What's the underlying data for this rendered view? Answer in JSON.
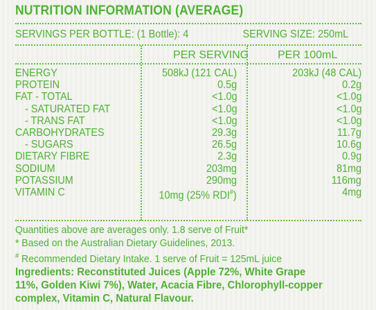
{
  "panel": {
    "title": "NUTRITION INFORMATION (AVERAGE)",
    "servings_per_bottle": "SERVINGS PER BOTTLE: (1 Bottle): 4",
    "serving_size": "SERVING SIZE: 250mL",
    "col_per_serving": "PER SERVING",
    "col_per_100ml": "PER 100mL"
  },
  "nutrients": [
    {
      "name": "ENERGY",
      "per_serving": "508kJ (121 CAL)",
      "per_100ml": "203kJ (48 CAL)"
    },
    {
      "name": "PROTEIN",
      "per_serving": "0.5g",
      "per_100ml": "0.2g"
    },
    {
      "name": "FAT - TOTAL",
      "per_serving": "<1.0g",
      "per_100ml": "<1.0g"
    },
    {
      "name": "- SATURATED FAT",
      "per_serving": "<1.0g",
      "per_100ml": "<1.0g"
    },
    {
      "name": "- TRANS FAT",
      "per_serving": "<1.0g",
      "per_100ml": "<1.0g"
    },
    {
      "name": "CARBOHYDRATES",
      "per_serving": "29.3g",
      "per_100ml": "11.7g"
    },
    {
      "name": "- SUGARS",
      "per_serving": "26.5g",
      "per_100ml": "10.6g"
    },
    {
      "name": "DIETARY FIBRE",
      "per_serving": "2.3g",
      "per_100ml": "0.9g"
    },
    {
      "name": "SODIUM",
      "per_serving": "203mg",
      "per_100ml": "81mg"
    },
    {
      "name": "POTASSIUM",
      "per_serving": "290mg",
      "per_100ml": "116mg"
    },
    {
      "name": "VITAMIN C",
      "per_serving": "10mg (25% RDI#)",
      "per_100ml": "4mg"
    }
  ],
  "notes": {
    "line1": "Quantities above are averages only. 1.8 serve of Fruit*",
    "line2": "* Based on the Australian Dietary Guidelines, 2013.",
    "line3": "# Recommended Dietary Intake.  1 serve of Fruit = 125mL juice"
  },
  "ingredients": {
    "line1": "Ingredients: Reconstituted Juices (Apple 72%, White Grape",
    "line2": "11%, Golden Kiwi 7%), Water, Acacia Fibre, Chlorophyll-copper",
    "line3": "complex, Vitamin C, Natural Flavour."
  },
  "colors": {
    "text": "#4fb233",
    "background": "#f2f2ef"
  }
}
